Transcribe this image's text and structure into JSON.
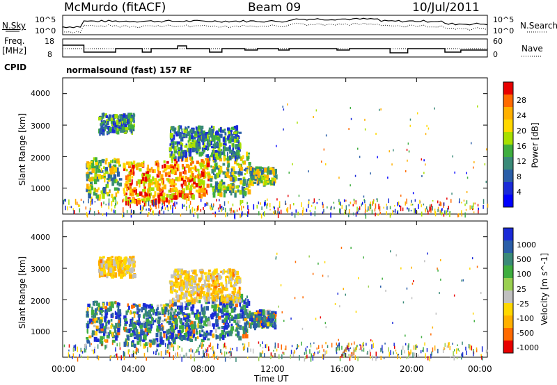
{
  "header": {
    "station": "McMurdo (fitACF)",
    "beam": "Beam 09",
    "date": "10/Jul/2011"
  },
  "panels": {
    "nsky": {
      "left_label": "N.Sky",
      "left_ticks": [
        "10^5",
        "10^0"
      ],
      "right_label": "N.Search",
      "right_ticks": [
        "10^5",
        "10^0"
      ]
    },
    "freq": {
      "left_label_line1": "Freq.",
      "left_label_line2": "[MHz]",
      "left_ticks": [
        "18",
        "8"
      ],
      "right_label": "Nave",
      "right_ticks": [
        "60",
        "0"
      ]
    },
    "cpid": {
      "label": "CPID",
      "mode_text": "normalsound (fast) 157 RF"
    }
  },
  "axes": {
    "xlabel": "Time UT",
    "x_ticks": [
      "00:00",
      "04:00",
      "08:00",
      "12:00",
      "16:00",
      "20:00",
      "00:00"
    ],
    "ylabel": "Slant Range [km]",
    "y_ticks": [
      "4000",
      "3000",
      "2000",
      "1000"
    ]
  },
  "power_colorbar": {
    "label": "Power [dB]",
    "ticks": [
      "28",
      "24",
      "20",
      "16",
      "12",
      "8",
      "4"
    ],
    "colors": [
      "#e80000",
      "#ff6a00",
      "#ffb000",
      "#ffd800",
      "#a8e000",
      "#3fae3f",
      "#3a8a78",
      "#2a5ea8",
      "#1a2ad8",
      "#0000ff"
    ]
  },
  "velocity_colorbar": {
    "label": "Velocity [m s^-1]",
    "ticks": [
      "1000",
      "500",
      "100",
      "25",
      "-25",
      "-100",
      "-500",
      "-1000"
    ],
    "colors": [
      "#1a2ad8",
      "#2a5ea8",
      "#3a8a78",
      "#3fae3f",
      "#9ad050",
      "#c0c0c0",
      "#ffd800",
      "#ffb000",
      "#ff6a00",
      "#e80000"
    ]
  },
  "chart_data": [
    {
      "type": "heatmap",
      "name": "Power",
      "x_range_hours": [
        0,
        24
      ],
      "y_range_km": [
        180,
        4500
      ],
      "colorbar_range_db": [
        0,
        30
      ],
      "regions": [
        {
          "t0": 1.3,
          "t1": 3.2,
          "r0": 700,
          "r1": 2000,
          "level": "mixed"
        },
        {
          "t0": 3.4,
          "t1": 6.2,
          "r0": 600,
          "r1": 1900,
          "level": "high"
        },
        {
          "t0": 6.0,
          "t1": 8.2,
          "r0": 750,
          "r1": 2000,
          "level": "high"
        },
        {
          "t0": 8.3,
          "t1": 10.5,
          "r0": 850,
          "r1": 2200,
          "level": "mixed"
        },
        {
          "t0": 10.5,
          "t1": 12.0,
          "r0": 1200,
          "r1": 1700,
          "level": "mixed"
        },
        {
          "t0": 2.0,
          "t1": 4.0,
          "r0": 2800,
          "r1": 3400,
          "level": "low"
        },
        {
          "t0": 6.0,
          "t1": 10.0,
          "r0": 2000,
          "r1": 3000,
          "level": "low"
        }
      ]
    },
    {
      "type": "heatmap",
      "name": "Velocity",
      "x_range_hours": [
        0,
        24
      ],
      "y_range_km": [
        180,
        4500
      ],
      "colorbar_range_ms": [
        -1000,
        1000
      ],
      "regions": [
        {
          "t0": 1.3,
          "t1": 3.2,
          "r0": 700,
          "r1": 2000,
          "level": "mixed"
        },
        {
          "t0": 3.4,
          "t1": 6.2,
          "r0": 600,
          "r1": 1900,
          "level": "high"
        },
        {
          "t0": 6.0,
          "t1": 8.2,
          "r0": 750,
          "r1": 2000,
          "level": "high"
        },
        {
          "t0": 8.3,
          "t1": 10.5,
          "r0": 850,
          "r1": 2200,
          "level": "mixed"
        },
        {
          "t0": 10.5,
          "t1": 12.0,
          "r0": 1200,
          "r1": 1700,
          "level": "mixed"
        },
        {
          "t0": 2.0,
          "t1": 4.0,
          "r0": 2800,
          "r1": 3400,
          "level": "low"
        },
        {
          "t0": 6.0,
          "t1": 10.0,
          "r0": 2000,
          "r1": 3000,
          "level": "low"
        }
      ]
    }
  ]
}
